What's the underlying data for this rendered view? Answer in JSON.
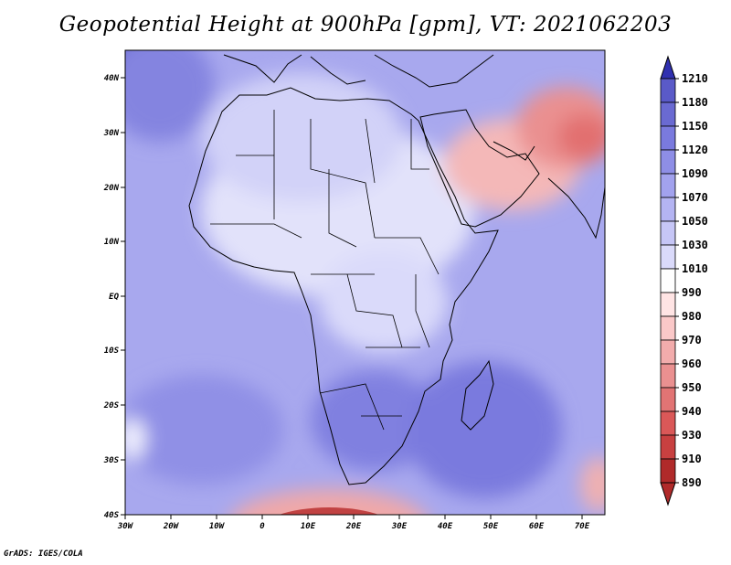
{
  "title": "Geopotential Height at 900hPa [gpm], VT: 2021062203",
  "credit": "GrADS: IGES/COLA",
  "lat_labels": [
    "40N",
    "30N",
    "20N",
    "10N",
    "EQ",
    "10S",
    "20S",
    "30S",
    "40S"
  ],
  "lon_labels": [
    "30W",
    "20W",
    "10W",
    "0",
    "10E",
    "20E",
    "30E",
    "40E",
    "50E",
    "60E",
    "70E"
  ],
  "colorbar": {
    "labels": [
      "1210",
      "1180",
      "1150",
      "1120",
      "1090",
      "1070",
      "1050",
      "1030",
      "1010",
      "990",
      "980",
      "970",
      "960",
      "950",
      "940",
      "930",
      "910",
      "890"
    ],
    "colors": [
      "#5a5ac8",
      "#6a6ad2",
      "#7a7ade",
      "#8e8ee6",
      "#a2a2ee",
      "#b4b4f2",
      "#c6c6f6",
      "#dadafa",
      "#ffffff",
      "#ffe4e4",
      "#fac8c8",
      "#f2acac",
      "#ea9090",
      "#e27474",
      "#da5858",
      "#c84040",
      "#b02a2a"
    ],
    "top_color": "#3030b0",
    "bottom_color": "#b02a2a"
  },
  "map_data": {
    "variable": "Geopotential Height",
    "level": "900hPa",
    "units": "gpm",
    "valid_time": "2021062203",
    "lon_range": [
      -30,
      75
    ],
    "lat_range": [
      -40,
      45
    ]
  }
}
